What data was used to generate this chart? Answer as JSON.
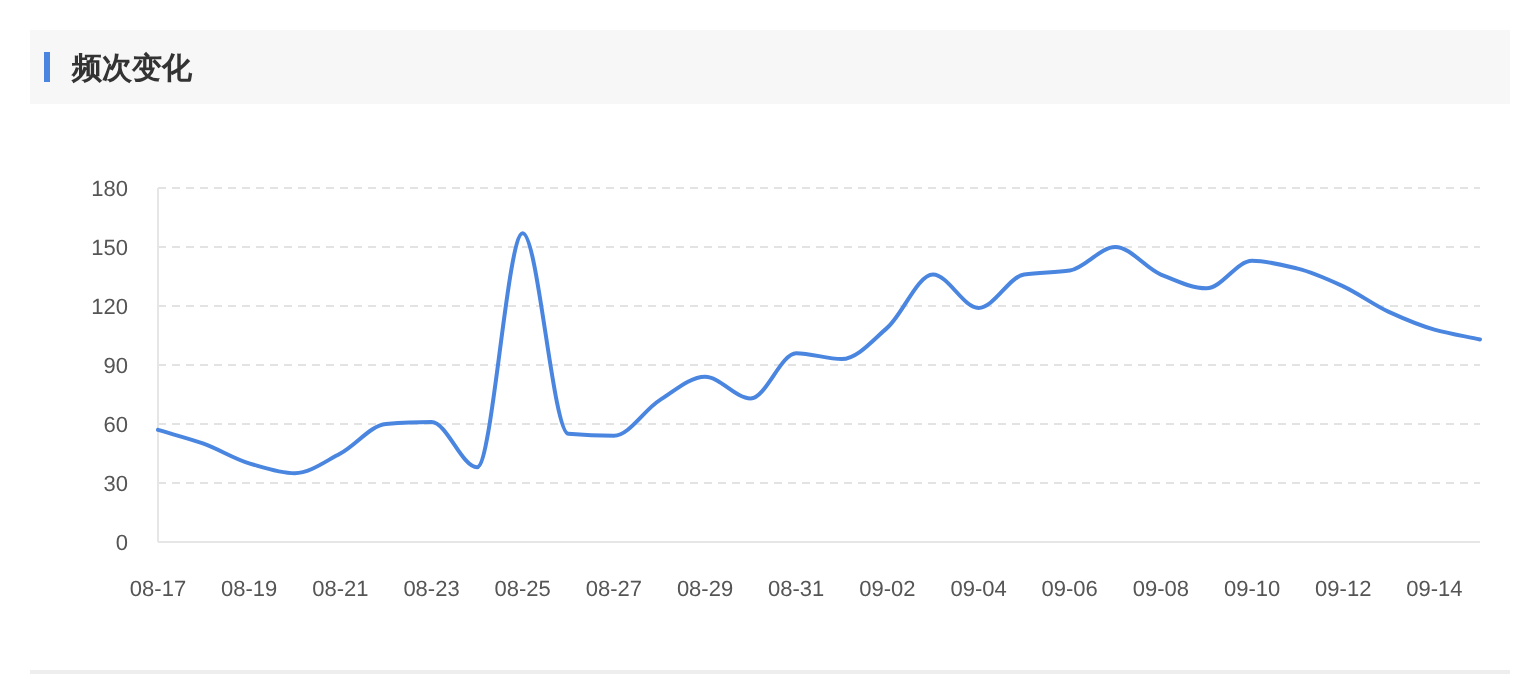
{
  "chart_data": {
    "type": "line",
    "title": "频次变化",
    "categories": [
      "08-17",
      null,
      "08-19",
      null,
      "08-21",
      null,
      "08-23",
      null,
      "08-25",
      null,
      "08-27",
      null,
      "08-29",
      null,
      "08-31",
      null,
      "09-02",
      null,
      "09-04",
      null,
      "09-06",
      null,
      "09-08",
      null,
      "09-10",
      null,
      "09-12",
      null,
      "09-14",
      null
    ],
    "series": [
      {
        "color": "#4a86e0",
        "values": [
          57,
          50,
          40,
          35,
          45,
          60,
          61,
          38,
          157,
          55,
          54,
          72,
          84,
          73,
          96,
          93,
          109,
          136,
          119,
          136,
          138,
          150,
          136,
          129,
          143,
          139,
          130,
          117,
          108,
          103
        ]
      }
    ],
    "ylim": [
      0,
      180
    ],
    "yticks": [
      0,
      30,
      60,
      90,
      120,
      150,
      180
    ],
    "grid": "y",
    "marker": "none",
    "line_style": "solid"
  }
}
